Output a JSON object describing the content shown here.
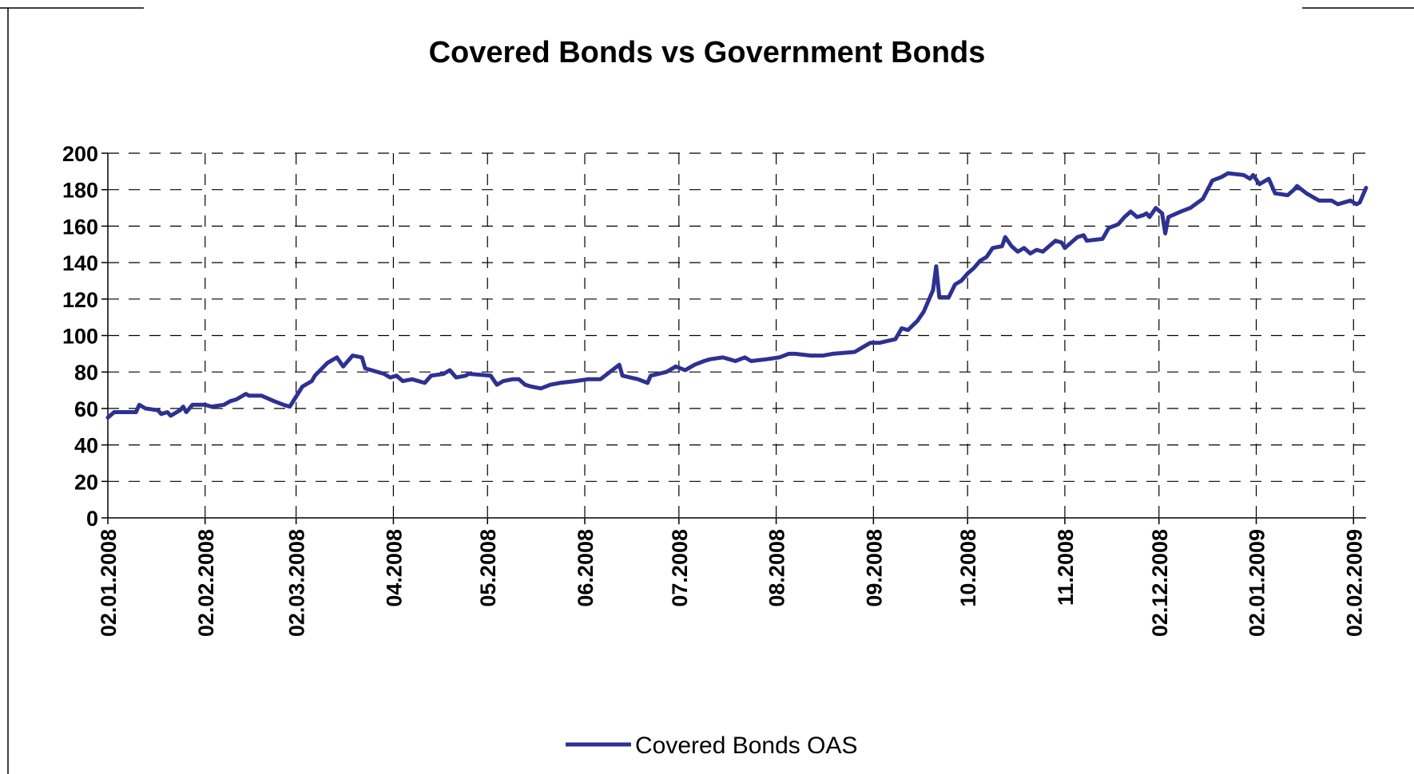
{
  "chart_data": {
    "type": "line",
    "title": "Covered Bonds vs Government Bonds",
    "xlabel": "",
    "ylabel": "",
    "ylim": [
      0,
      200
    ],
    "yticks": [
      0,
      20,
      40,
      60,
      80,
      100,
      120,
      140,
      160,
      180,
      200
    ],
    "xlim": [
      "2008-01-02",
      "2009-02-06"
    ],
    "x_tick_labels": [
      {
        "date": "2008-01-02",
        "label": "02.01.2008"
      },
      {
        "date": "2008-02-02",
        "label": "02.02.2008"
      },
      {
        "date": "2008-03-02",
        "label": "02.03.2008"
      },
      {
        "date": "2008-04-02",
        "label": "04.2008"
      },
      {
        "date": "2008-05-02",
        "label": "05.2008"
      },
      {
        "date": "2008-06-02",
        "label": "06.2008"
      },
      {
        "date": "2008-07-02",
        "label": "07.2008"
      },
      {
        "date": "2008-08-02",
        "label": "08.2008"
      },
      {
        "date": "2008-09-02",
        "label": "09.2008"
      },
      {
        "date": "2008-10-02",
        "label": "10.2008"
      },
      {
        "date": "2008-11-02",
        "label": "11.2008"
      },
      {
        "date": "2008-12-02",
        "label": "02.12.2008"
      },
      {
        "date": "2009-01-02",
        "label": "02.01.2009"
      },
      {
        "date": "2009-02-02",
        "label": "02.02.2009"
      }
    ],
    "grid": true,
    "legend_position": "bottom-center",
    "colors": {
      "series": "#2e3192"
    },
    "series": [
      {
        "name": "Covered Bonds OAS",
        "color": "#2e3192",
        "points": [
          [
            "2008-01-02",
            55
          ],
          [
            "2008-01-04",
            58
          ],
          [
            "2008-01-09",
            58
          ],
          [
            "2008-01-11",
            58
          ],
          [
            "2008-01-12",
            62
          ],
          [
            "2008-01-14",
            60
          ],
          [
            "2008-01-18",
            59
          ],
          [
            "2008-01-19",
            57
          ],
          [
            "2008-01-21",
            58
          ],
          [
            "2008-01-22",
            56
          ],
          [
            "2008-01-25",
            59
          ],
          [
            "2008-01-26",
            61
          ],
          [
            "2008-01-27",
            58
          ],
          [
            "2008-01-29",
            62
          ],
          [
            "2008-02-02",
            62
          ],
          [
            "2008-02-04",
            61
          ],
          [
            "2008-02-08",
            62
          ],
          [
            "2008-02-10",
            64
          ],
          [
            "2008-02-12",
            65
          ],
          [
            "2008-02-15",
            68
          ],
          [
            "2008-02-16",
            67
          ],
          [
            "2008-02-20",
            67
          ],
          [
            "2008-02-24",
            64
          ],
          [
            "2008-02-27",
            62
          ],
          [
            "2008-02-29",
            61
          ],
          [
            "2008-03-04",
            72
          ],
          [
            "2008-03-07",
            75
          ],
          [
            "2008-03-08",
            78
          ],
          [
            "2008-03-12",
            85
          ],
          [
            "2008-03-15",
            88
          ],
          [
            "2008-03-17",
            83
          ],
          [
            "2008-03-20",
            89
          ],
          [
            "2008-03-23",
            88
          ],
          [
            "2008-03-24",
            82
          ],
          [
            "2008-03-30",
            79
          ],
          [
            "2008-04-01",
            77
          ],
          [
            "2008-04-03",
            78
          ],
          [
            "2008-04-05",
            75
          ],
          [
            "2008-04-08",
            76
          ],
          [
            "2008-04-12",
            74
          ],
          [
            "2008-04-14",
            78
          ],
          [
            "2008-04-18",
            79
          ],
          [
            "2008-04-20",
            81
          ],
          [
            "2008-04-22",
            77
          ],
          [
            "2008-04-25",
            78
          ],
          [
            "2008-04-26",
            79
          ],
          [
            "2008-05-03",
            78
          ],
          [
            "2008-05-05",
            73
          ],
          [
            "2008-05-07",
            75
          ],
          [
            "2008-05-10",
            76
          ],
          [
            "2008-05-12",
            76
          ],
          [
            "2008-05-14",
            73
          ],
          [
            "2008-05-16",
            72
          ],
          [
            "2008-05-19",
            71
          ],
          [
            "2008-05-22",
            73
          ],
          [
            "2008-05-25",
            74
          ],
          [
            "2008-05-30",
            75
          ],
          [
            "2008-06-03",
            76
          ],
          [
            "2008-06-07",
            76
          ],
          [
            "2008-06-10",
            80
          ],
          [
            "2008-06-13",
            84
          ],
          [
            "2008-06-14",
            78
          ],
          [
            "2008-06-19",
            76
          ],
          [
            "2008-06-22",
            74
          ],
          [
            "2008-06-23",
            78
          ],
          [
            "2008-06-28",
            80
          ],
          [
            "2008-07-01",
            83
          ],
          [
            "2008-07-04",
            81
          ],
          [
            "2008-07-07",
            84
          ],
          [
            "2008-07-10",
            86
          ],
          [
            "2008-07-12",
            87
          ],
          [
            "2008-07-16",
            88
          ],
          [
            "2008-07-18",
            87
          ],
          [
            "2008-07-20",
            86
          ],
          [
            "2008-07-23",
            88
          ],
          [
            "2008-07-25",
            86
          ],
          [
            "2008-07-30",
            87
          ],
          [
            "2008-08-03",
            88
          ],
          [
            "2008-08-06",
            90
          ],
          [
            "2008-08-08",
            90
          ],
          [
            "2008-08-13",
            89
          ],
          [
            "2008-08-17",
            89
          ],
          [
            "2008-08-20",
            90
          ],
          [
            "2008-08-27",
            91
          ],
          [
            "2008-08-30",
            94
          ],
          [
            "2008-09-01",
            96
          ],
          [
            "2008-09-04",
            96
          ],
          [
            "2008-09-09",
            98
          ],
          [
            "2008-09-11",
            104
          ],
          [
            "2008-09-13",
            103
          ],
          [
            "2008-09-16",
            108
          ],
          [
            "2008-09-18",
            113
          ],
          [
            "2008-09-21",
            125
          ],
          [
            "2008-09-22",
            138
          ],
          [
            "2008-09-23",
            121
          ],
          [
            "2008-09-26",
            121
          ],
          [
            "2008-09-28",
            128
          ],
          [
            "2008-09-30",
            130
          ],
          [
            "2008-10-02",
            134
          ],
          [
            "2008-10-04",
            137
          ],
          [
            "2008-10-06",
            141
          ],
          [
            "2008-10-08",
            143
          ],
          [
            "2008-10-10",
            148
          ],
          [
            "2008-10-13",
            149
          ],
          [
            "2008-10-14",
            154
          ],
          [
            "2008-10-16",
            149
          ],
          [
            "2008-10-18",
            146
          ],
          [
            "2008-10-20",
            148
          ],
          [
            "2008-10-22",
            145
          ],
          [
            "2008-10-24",
            147
          ],
          [
            "2008-10-26",
            146
          ],
          [
            "2008-10-28",
            149
          ],
          [
            "2008-10-30",
            152
          ],
          [
            "2008-11-01",
            151
          ],
          [
            "2008-11-02",
            148
          ],
          [
            "2008-11-04",
            151
          ],
          [
            "2008-11-06",
            154
          ],
          [
            "2008-11-08",
            155
          ],
          [
            "2008-11-09",
            152
          ],
          [
            "2008-11-14",
            153
          ],
          [
            "2008-11-16",
            159
          ],
          [
            "2008-11-19",
            161
          ],
          [
            "2008-11-21",
            165
          ],
          [
            "2008-11-23",
            168
          ],
          [
            "2008-11-25",
            165
          ],
          [
            "2008-11-27",
            166
          ],
          [
            "2008-11-28",
            167
          ],
          [
            "2008-11-29",
            165
          ],
          [
            "2008-12-01",
            170
          ],
          [
            "2008-12-03",
            167
          ],
          [
            "2008-12-04",
            156
          ],
          [
            "2008-12-05",
            165
          ],
          [
            "2008-12-09",
            168
          ],
          [
            "2008-12-12",
            170
          ],
          [
            "2008-12-16",
            175
          ],
          [
            "2008-12-19",
            185
          ],
          [
            "2008-12-22",
            187
          ],
          [
            "2008-12-24",
            189
          ],
          [
            "2008-12-29",
            188
          ],
          [
            "2008-12-31",
            186
          ],
          [
            "2009-01-01",
            188
          ],
          [
            "2009-01-03",
            183
          ],
          [
            "2009-01-06",
            186
          ],
          [
            "2009-01-08",
            178
          ],
          [
            "2009-01-12",
            177
          ],
          [
            "2009-01-14",
            180
          ],
          [
            "2009-01-15",
            182
          ],
          [
            "2009-01-18",
            178
          ],
          [
            "2009-01-20",
            176
          ],
          [
            "2009-01-22",
            174
          ],
          [
            "2009-01-26",
            174
          ],
          [
            "2009-01-28",
            172
          ],
          [
            "2009-01-30",
            173
          ],
          [
            "2009-02-01",
            174
          ],
          [
            "2009-02-03",
            172
          ],
          [
            "2009-02-04",
            173
          ],
          [
            "2009-02-06",
            181
          ]
        ]
      }
    ]
  }
}
